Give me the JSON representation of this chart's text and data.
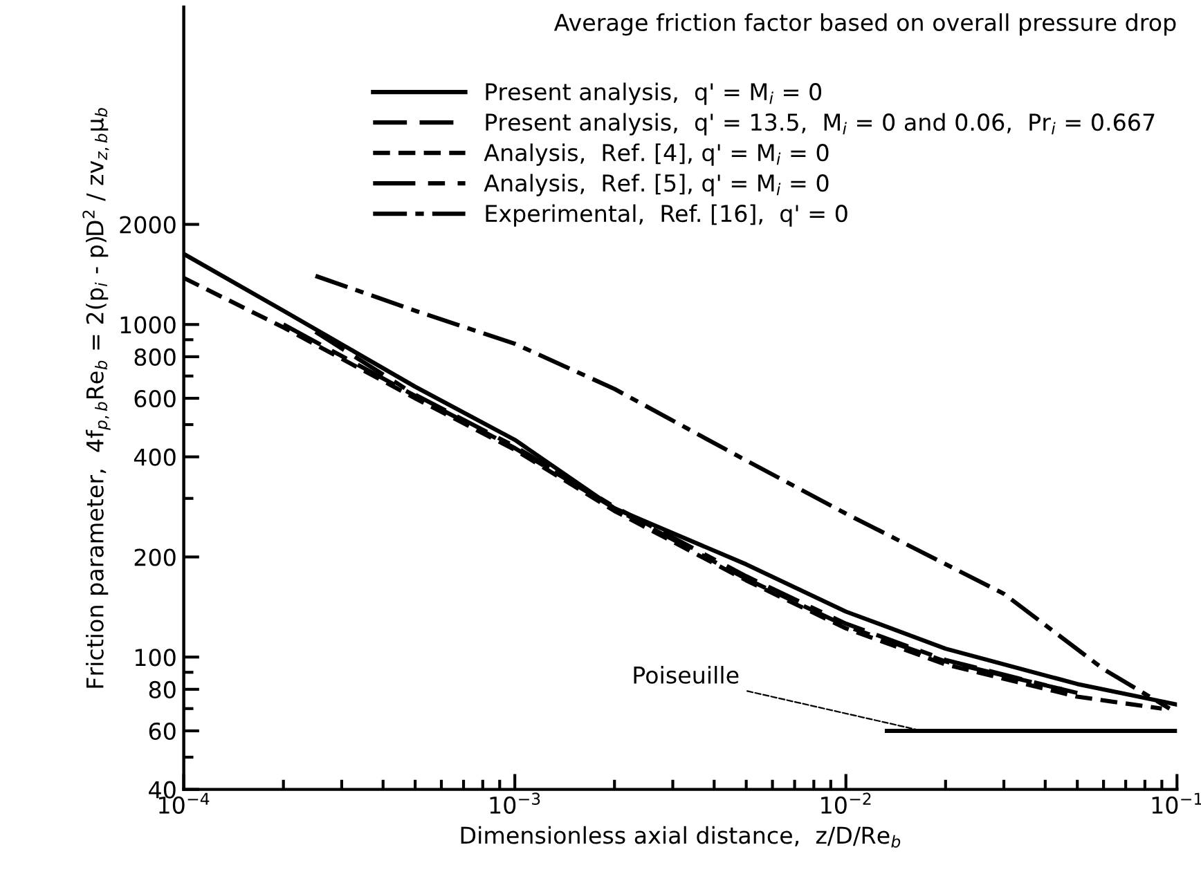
{
  "chart_data": {
    "type": "line",
    "title": "Average friction factor based on overall pressure drop",
    "xlabel": "Dimensionless axial distance,  z/D/Re$_{b}$",
    "ylabel": "Friction parameter,  4f$_{p,b}$Re$_{b}$ = 2(p$_{i}$ - p)D$^{2}$ / zv$_{z,b}$μ$_{b}$",
    "log": "xy",
    "xlim": [
      0.0001,
      0.1
    ],
    "ylim": [
      40,
      9000
    ],
    "xticks": [
      {
        "value": 0.0001,
        "label": "10$^{−4}$"
      },
      {
        "value": 0.0002,
        "label": null
      },
      {
        "value": 0.0003,
        "label": null
      },
      {
        "value": 0.0004,
        "label": null
      },
      {
        "value": 0.0005,
        "label": null
      },
      {
        "value": 0.0006,
        "label": null
      },
      {
        "value": 0.0007,
        "label": null
      },
      {
        "value": 0.0008,
        "label": null
      },
      {
        "value": 0.0009,
        "label": null
      },
      {
        "value": 0.001,
        "label": "10$^{−3}$"
      },
      {
        "value": 0.002,
        "label": null
      },
      {
        "value": 0.003,
        "label": null
      },
      {
        "value": 0.004,
        "label": null
      },
      {
        "value": 0.005,
        "label": null
      },
      {
        "value": 0.006,
        "label": null
      },
      {
        "value": 0.007,
        "label": null
      },
      {
        "value": 0.008,
        "label": null
      },
      {
        "value": 0.009,
        "label": null
      },
      {
        "value": 0.01,
        "label": "10$^{−2}$"
      },
      {
        "value": 0.02,
        "label": null
      },
      {
        "value": 0.03,
        "label": null
      },
      {
        "value": 0.04,
        "label": null
      },
      {
        "value": 0.05,
        "label": null
      },
      {
        "value": 0.06,
        "label": null
      },
      {
        "value": 0.07,
        "label": null
      },
      {
        "value": 0.08,
        "label": null
      },
      {
        "value": 0.09,
        "label": null
      },
      {
        "value": 0.1,
        "label": "10$^{−1}$"
      }
    ],
    "yticks": [
      40,
      {
        "value": 50,
        "label": null
      },
      60,
      {
        "value": 70,
        "label": null
      },
      80,
      {
        "value": 90,
        "label": null
      },
      100,
      200,
      {
        "value": 300,
        "label": null
      },
      400,
      {
        "value": 500,
        "label": null
      },
      600,
      {
        "value": 700,
        "label": null
      },
      800,
      {
        "value": 900,
        "label": null
      },
      1000,
      2000
    ],
    "grid": false,
    "legend": "top right",
    "series": [
      {
        "name": "Present analysis,  q' = M$_{i}$ = 0",
        "color": "#000000",
        "line_style": "solid",
        "x": [
          0.0001,
          0.0002,
          0.0005,
          0.001,
          0.002,
          0.005,
          0.01,
          0.02,
          0.05,
          0.1
        ],
        "values": [
          1630,
          1100,
          650,
          450,
          280,
          190,
          137,
          106,
          83,
          72
        ]
      },
      {
        "name": "Present analysis,  q' = 13.5,  M$_{i}$ = 0 and 0.06,  Pr$_{i}$ = 0.667",
        "color": "#000000",
        "line_style": "dashed",
        "x": [
          0.00025,
          0.0005,
          0.001,
          0.002,
          0.005,
          0.01,
          0.02,
          0.045
        ],
        "values": [
          950,
          615,
          430,
          283,
          175,
          126,
          98,
          80
        ]
      },
      {
        "name": "Analysis,  Ref. [4], q' = M$_{i}$ = 0",
        "color": "#000000",
        "line_style": "dashed",
        "x": [
          0.0001,
          0.0002,
          0.0005,
          0.001,
          0.002,
          0.005,
          0.01,
          0.02,
          0.05,
          0.09
        ],
        "values": [
          1380,
          980,
          600,
          420,
          275,
          170,
          122,
          95,
          76,
          70
        ]
      },
      {
        "name": "Analysis,  Ref. [5], q' = M$_{i}$ = 0",
        "color": "#000000",
        "line_style": "dashed",
        "x": [
          0.0002,
          0.0005,
          0.001,
          0.002,
          0.005,
          0.01,
          0.02,
          0.05
        ],
        "values": [
          1000,
          610,
          425,
          280,
          172,
          124,
          97,
          78
        ]
      },
      {
        "name": "Experimental,  Ref. [16],  q' = 0",
        "color": "#000000",
        "line_style": "dashed",
        "x": [
          0.00025,
          0.0005,
          0.001,
          0.002,
          0.005,
          0.01,
          0.03,
          0.06,
          0.095
        ],
        "values": [
          1400,
          1100,
          875,
          640,
          390,
          270,
          155,
          92,
          70
        ]
      },
      {
        "color": "#000000",
        "line_style": "solid",
        "x": [
          0.0133,
          0.1
        ],
        "values": [
          60,
          60
        ]
      }
    ],
    "annotations": [
      {
        "text": "Poiseuille",
        "x": 0.017,
        "y": 60
      }
    ]
  }
}
